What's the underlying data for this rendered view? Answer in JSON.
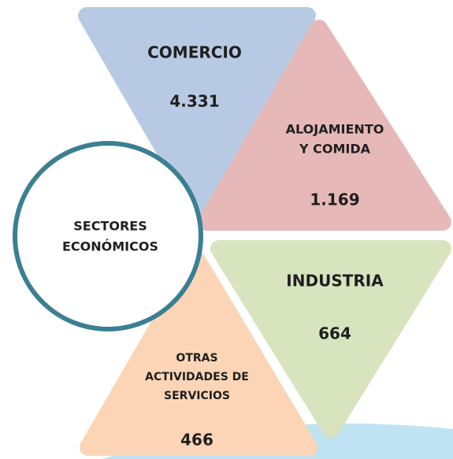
{
  "center": {
    "lines": [
      "SECTORES",
      "ECONÓMICOS"
    ]
  },
  "nodes": [
    {
      "lines": [
        "COMERCIO"
      ],
      "value": "4.331"
    },
    {
      "lines": [
        "ALOJAMIENTO",
        "Y COMIDA"
      ],
      "value": "1.169"
    },
    {
      "lines": [
        "INDUSTRIA"
      ],
      "value": "664"
    },
    {
      "lines": [
        "OTRAS",
        "ACTIVIDADES DE",
        "SERVICIOS"
      ],
      "value": "466"
    }
  ]
}
